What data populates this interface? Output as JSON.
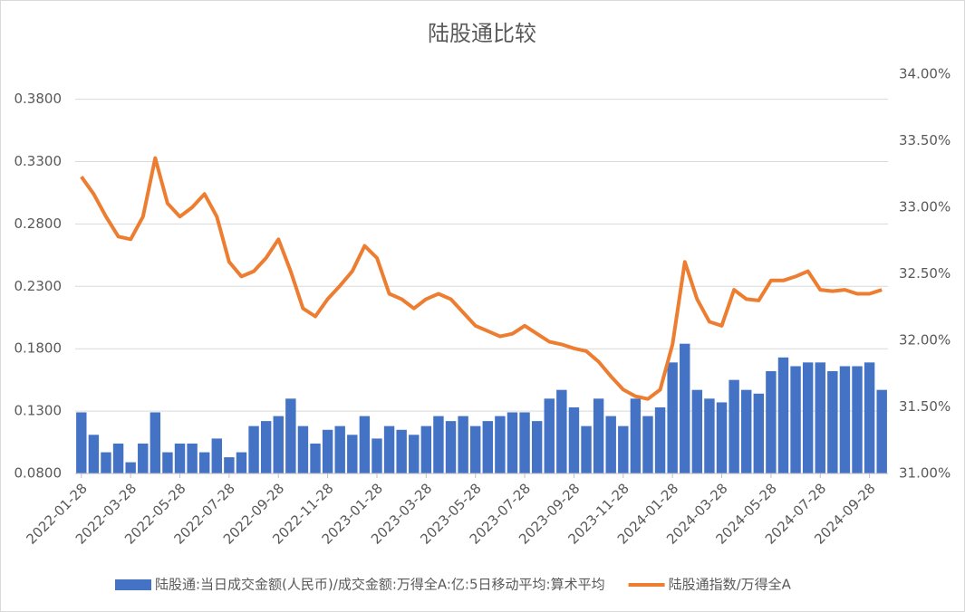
{
  "chart_data": {
    "type": "combo",
    "title": "陆股通比较",
    "categories": [
      "2022-01-28",
      null,
      null,
      null,
      "2022-03-28",
      null,
      null,
      null,
      "2022-05-28",
      null,
      null,
      null,
      "2022-07-28",
      null,
      null,
      null,
      "2022-09-28",
      null,
      null,
      null,
      "2022-11-28",
      null,
      null,
      null,
      "2023-01-28",
      null,
      null,
      null,
      "2023-03-28",
      null,
      null,
      null,
      "2023-05-28",
      null,
      null,
      null,
      "2023-07-28",
      null,
      null,
      null,
      "2023-09-28",
      null,
      null,
      null,
      "2023-11-28",
      null,
      null,
      null,
      "2024-01-28",
      null,
      null,
      null,
      "2024-03-28",
      null,
      null,
      null,
      "2024-05-28",
      null,
      null,
      null,
      "2024-07-28",
      null,
      null,
      null,
      "2024-09-28",
      null
    ],
    "series": [
      {
        "name": "陆股通:当日成交金额(人民币)/成交金额:万得全A:亿:5日移动平均:算术平均",
        "type": "bar",
        "color": "#4472c4",
        "values": [
          0.129,
          0.111,
          0.097,
          0.104,
          0.089,
          0.104,
          0.129,
          0.097,
          0.104,
          0.104,
          0.097,
          0.108,
          0.093,
          0.097,
          0.118,
          0.122,
          0.126,
          0.14,
          0.118,
          0.104,
          0.115,
          0.118,
          0.111,
          0.126,
          0.108,
          0.118,
          0.115,
          0.111,
          0.118,
          0.126,
          0.122,
          0.126,
          0.118,
          0.122,
          0.126,
          0.129,
          0.129,
          0.122,
          0.14,
          0.147,
          0.133,
          0.118,
          0.14,
          0.126,
          0.118,
          0.14,
          0.126,
          0.133,
          0.169,
          0.184,
          0.147,
          0.14,
          0.137,
          0.155,
          0.147,
          0.144,
          0.162,
          0.173,
          0.166,
          0.169,
          0.169,
          0.162,
          0.166,
          0.166,
          0.169,
          0.147
        ]
      },
      {
        "name": "陆股通指数/万得全A",
        "type": "line",
        "axis": "y2",
        "color": "#ed7d31",
        "values": [
          33.23,
          33.1,
          32.93,
          32.78,
          32.76,
          32.93,
          33.37,
          33.03,
          32.93,
          33.0,
          33.1,
          32.93,
          32.59,
          32.48,
          32.52,
          32.62,
          32.76,
          32.52,
          32.24,
          32.18,
          32.31,
          32.41,
          32.52,
          32.71,
          32.62,
          32.35,
          32.31,
          32.24,
          32.31,
          32.35,
          32.31,
          32.21,
          32.11,
          32.07,
          32.03,
          32.05,
          32.11,
          32.05,
          31.99,
          31.97,
          31.94,
          31.92,
          31.84,
          31.73,
          31.63,
          31.58,
          31.56,
          31.63,
          31.97,
          32.59,
          32.31,
          32.14,
          32.11,
          32.38,
          32.31,
          32.3,
          32.45,
          32.45,
          32.48,
          32.52,
          32.38,
          32.37,
          32.38,
          32.35,
          32.35,
          32.38
        ]
      }
    ],
    "ylim": [
      0.08,
      0.4
    ],
    "yticks": [
      {
        "value": 0.08,
        "label": "0.0800"
      },
      {
        "value": 0.13,
        "label": "0.1300"
      },
      {
        "value": 0.18,
        "label": "0.1800"
      },
      {
        "value": 0.23,
        "label": "0.2300"
      },
      {
        "value": 0.28,
        "label": "0.2800"
      },
      {
        "value": 0.33,
        "label": "0.3300"
      },
      {
        "value": 0.38,
        "label": "0.3800"
      }
    ],
    "y2lim": [
      31,
      34
    ],
    "y2ticks": [
      {
        "value": 31,
        "label": "31.00%"
      },
      {
        "value": 31.5,
        "label": "31.50%"
      },
      {
        "value": 32,
        "label": "32.00%"
      },
      {
        "value": 32.5,
        "label": "32.50%"
      },
      {
        "value": 33,
        "label": "33.00%"
      },
      {
        "value": 33.5,
        "label": "33.50%"
      },
      {
        "value": 34,
        "label": "34.00%"
      }
    ],
    "grid": true,
    "legend": "bottom"
  }
}
